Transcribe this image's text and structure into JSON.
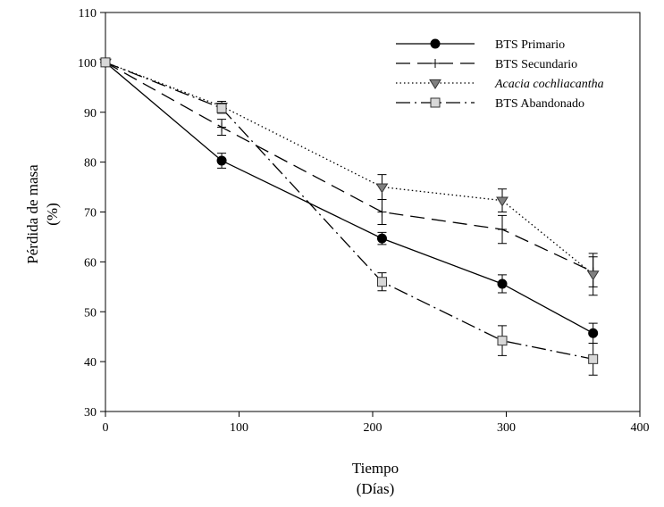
{
  "chart_data": {
    "type": "line",
    "xlabel_lines": [
      "Tiempo",
      "(Días)"
    ],
    "ylabel_lines": [
      "Pérdida de masa",
      "(%)"
    ],
    "xlim": [
      0,
      400
    ],
    "ylim": [
      30,
      110
    ],
    "xticks": [
      0,
      100,
      200,
      300,
      400
    ],
    "yticks": [
      30,
      40,
      50,
      60,
      70,
      80,
      90,
      100,
      110
    ],
    "grid": false,
    "legend_position": "top-right",
    "series": [
      {
        "name": "BTS Primario",
        "italic": false,
        "line_style": "solid",
        "marker": "circle-filled",
        "marker_color": "#000000",
        "x": [
          0,
          87,
          207,
          297,
          365
        ],
        "y": [
          100,
          80.3,
          64.7,
          55.6,
          45.7
        ],
        "error": [
          0.6,
          1.5,
          1.2,
          1.8,
          2.0
        ]
      },
      {
        "name": "BTS Secundario",
        "italic": false,
        "line_style": "dashed",
        "marker": "plus",
        "marker_color": "#000000",
        "x": [
          0,
          87,
          207,
          297,
          365
        ],
        "y": [
          100,
          87.0,
          70.0,
          66.5,
          58.0
        ],
        "error": [
          0.5,
          1.6,
          2.5,
          2.8,
          3.0
        ]
      },
      {
        "name": "Acacia cochliacantha",
        "italic": true,
        "line_style": "dotted",
        "marker": "triangle-down-gray",
        "marker_color": "#808080",
        "x": [
          0,
          87,
          207,
          297,
          365
        ],
        "y": [
          100,
          91.2,
          75.0,
          72.3,
          57.5
        ],
        "error": [
          0.5,
          1.0,
          2.5,
          2.3,
          4.2
        ]
      },
      {
        "name": "BTS Abandonado",
        "italic": false,
        "line_style": "dashdot",
        "marker": "square-lightgray",
        "marker_color": "#d8d8d8",
        "x": [
          0,
          87,
          207,
          297,
          365
        ],
        "y": [
          100,
          90.8,
          56.0,
          44.2,
          40.5
        ],
        "error": [
          0.5,
          1.0,
          1.8,
          3.0,
          3.2
        ]
      }
    ]
  }
}
